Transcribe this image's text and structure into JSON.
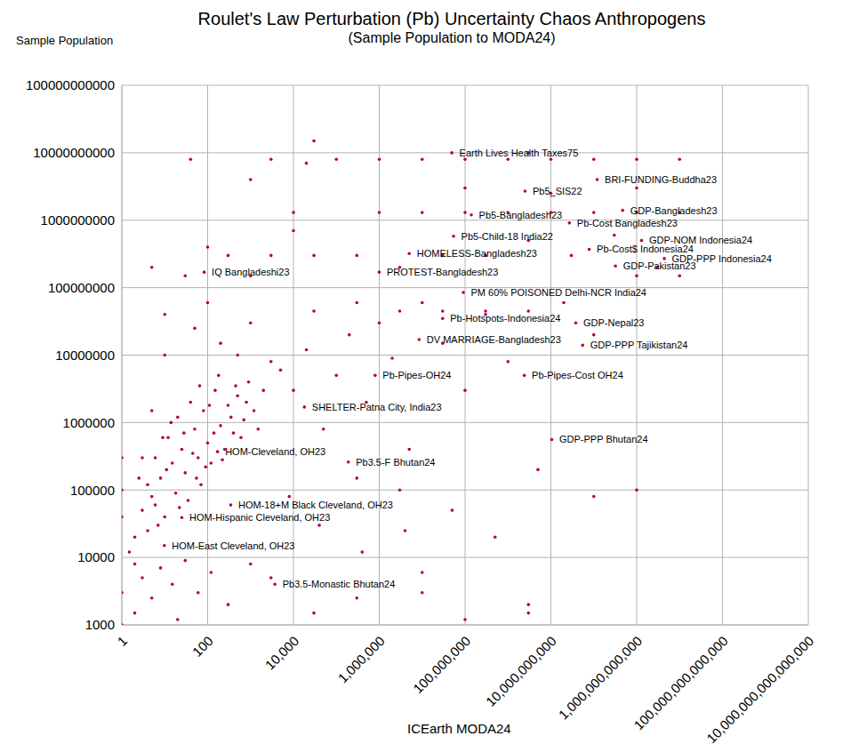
{
  "chart_data": {
    "type": "scatter",
    "title": "Roulet's Law Perturbation (Pb) Uncertainty Chaos Anthropogens",
    "subtitle": "(Sample Population to MODA24)",
    "x_label": "ICEarth MODA24",
    "y_label": "Sample Population",
    "log": true,
    "grid": true,
    "color": "#b5003f",
    "marker": "circle",
    "xlim": [
      1,
      10000000000000000
    ],
    "ylim": [
      1000,
      100000000000
    ],
    "xticks": [
      1,
      100,
      {
        "value": 10000,
        "label": "10,000"
      },
      {
        "value": 1000000,
        "label": "1,000,000"
      },
      {
        "value": 100000000,
        "label": "100,000,000"
      },
      {
        "value": 10000000000,
        "label": "10,000,000,000"
      },
      {
        "value": 1000000000000,
        "label": "1,000,000,000,000"
      },
      {
        "value": 100000000000000,
        "label": "100,000,000,000,000"
      },
      {
        "value": 10000000000000000,
        "label": "10,000,000,000,000,000"
      }
    ],
    "yticks": [
      1000,
      10000,
      100000,
      1000000,
      10000000,
      100000000,
      1000000000,
      10000000000,
      100000000000
    ],
    "points": [
      [
        2,
        20000
      ],
      [
        3,
        50000
      ],
      [
        4,
        120000
      ],
      [
        5,
        80000
      ],
      [
        6,
        300000
      ],
      [
        8,
        150000
      ],
      [
        10,
        40000
      ],
      [
        12,
        600000
      ],
      [
        15,
        250000
      ],
      [
        18,
        90000
      ],
      [
        20,
        1200000
      ],
      [
        25,
        400000
      ],
      [
        30,
        180000
      ],
      [
        35,
        70000
      ],
      [
        40,
        2000000
      ],
      [
        50,
        800000
      ],
      [
        60,
        300000
      ],
      [
        70,
        120000
      ],
      [
        80,
        1500000
      ],
      [
        100,
        500000
      ],
      [
        120,
        250000
      ],
      [
        150,
        3000000
      ],
      [
        200,
        900000
      ],
      [
        250,
        400000
      ],
      [
        300,
        1800000
      ],
      [
        400,
        700000
      ],
      [
        500,
        2500000
      ],
      [
        700,
        1100000
      ],
      [
        900,
        4000000
      ],
      [
        1200,
        1500000
      ],
      [
        2,
        8000
      ],
      [
        3,
        300000
      ],
      [
        5,
        1500000
      ],
      [
        7,
        30000
      ],
      [
        9,
        600000
      ],
      [
        1,
        100000
      ],
      [
        1,
        40000
      ],
      [
        1,
        300000
      ],
      [
        1.5,
        12000
      ],
      [
        2.5,
        150000
      ],
      [
        4,
        25000
      ],
      [
        6,
        60000
      ],
      [
        11,
        200000
      ],
      [
        14,
        1000000
      ],
      [
        22,
        55000
      ],
      [
        28,
        700000
      ],
      [
        45,
        350000
      ],
      [
        55,
        150000
      ],
      [
        65,
        3500000
      ],
      [
        90,
        220000
      ],
      [
        110,
        1800000
      ],
      [
        140,
        700000
      ],
      [
        180,
        5000000
      ],
      [
        220,
        280000
      ],
      [
        350,
        1200000
      ],
      [
        450,
        3500000
      ],
      [
        600,
        600000
      ],
      [
        800,
        2000000
      ],
      [
        1500,
        800000
      ],
      [
        2000,
        3000000
      ],
      [
        1,
        3000
      ],
      [
        2,
        1500
      ],
      [
        3,
        5000
      ],
      [
        5,
        2500
      ],
      [
        8,
        7000
      ],
      [
        15,
        4000
      ],
      [
        30,
        9000
      ],
      [
        60,
        3000
      ],
      [
        120,
        6000
      ],
      [
        300,
        2000
      ],
      [
        1000,
        8000
      ],
      [
        3000,
        5000
      ],
      [
        30000,
        1500
      ],
      [
        300000,
        2500
      ],
      [
        10000000,
        6000
      ],
      [
        100000000,
        1200
      ],
      [
        3000000000,
        1500
      ],
      [
        1,
        1000
      ],
      [
        20,
        1200
      ],
      [
        5000,
        6000000
      ],
      [
        10000,
        3000000
      ],
      [
        20000,
        12000000
      ],
      [
        50000,
        800000
      ],
      [
        100000,
        5000000
      ],
      [
        200000,
        20000000
      ],
      [
        500000,
        2000000
      ],
      [
        1000000,
        30000000
      ],
      [
        2000000,
        9000000
      ],
      [
        5000000,
        400000
      ],
      [
        10000000,
        60000000
      ],
      [
        30000000,
        15000000
      ],
      [
        100000000,
        3000000
      ],
      [
        300000000,
        40000000
      ],
      [
        1000000000,
        8000000
      ],
      [
        5000000000,
        200000
      ],
      [
        20000000000,
        60000000
      ],
      [
        100000000000,
        20000000
      ],
      [
        1000000000000,
        150000000
      ],
      [
        3000000,
        100000
      ],
      [
        300000,
        150000
      ],
      [
        50000000,
        50000
      ],
      [
        500000000,
        20000
      ],
      [
        8000,
        80000
      ],
      [
        40000,
        30000
      ],
      [
        400000,
        12000
      ],
      [
        4000000,
        25000
      ],
      [
        10,
        10000000
      ],
      [
        50,
        25000000
      ],
      [
        200,
        15000000
      ],
      [
        1000,
        30000000
      ],
      [
        3000,
        8000000
      ],
      [
        30000,
        45000000
      ],
      [
        300000,
        60000000
      ],
      [
        3000000,
        45000000
      ],
      [
        30000000,
        45000000
      ],
      [
        300000000,
        45000000
      ],
      [
        3000000000,
        45000000
      ],
      [
        10,
        40000000
      ],
      [
        100,
        60000000
      ],
      [
        500,
        10000000
      ],
      [
        5,
        200000000
      ],
      [
        30,
        150000000
      ],
      [
        300,
        300000000
      ],
      [
        3000,
        300000000
      ],
      [
        30000,
        300000000
      ],
      [
        300000,
        300000000
      ],
      [
        3000000,
        200000000
      ],
      [
        30000000,
        300000000
      ],
      [
        300000000,
        300000000
      ],
      [
        3000000000,
        500000000
      ],
      [
        30000000000,
        300000000
      ],
      [
        300000000000,
        600000000
      ],
      [
        3000000000000,
        200000000
      ],
      [
        10000000000000,
        150000000
      ],
      [
        100,
        400000000
      ],
      [
        1000,
        150000000
      ],
      [
        10000,
        700000000
      ],
      [
        1000000,
        1300000000
      ],
      [
        10000000,
        1300000000
      ],
      [
        100000000,
        1300000000
      ],
      [
        1000000000,
        1300000000
      ],
      [
        10000000000,
        1300000000
      ],
      [
        100000000000,
        1300000000
      ],
      [
        1000000000000,
        1300000000
      ],
      [
        10000000000000,
        1300000000
      ],
      [
        10000,
        1300000000
      ],
      [
        40,
        8000000000
      ],
      [
        3000,
        8000000000
      ],
      [
        100000,
        8000000000
      ],
      [
        1000000,
        8000000000
      ],
      [
        10000000,
        8000000000
      ],
      [
        100000000,
        8000000000
      ],
      [
        1000000000,
        8000000000
      ],
      [
        10000000000,
        8000000000
      ],
      [
        100000000000,
        8000000000
      ],
      [
        1000000000000,
        8000000000
      ],
      [
        10000000000000,
        8000000000
      ],
      [
        20000,
        7000000000
      ],
      [
        30000,
        15000000000
      ],
      [
        3000000000,
        10000000000
      ],
      [
        1000,
        4000000000
      ],
      [
        100000000,
        3000000000
      ],
      [
        10000000000,
        2500000000
      ],
      [
        1000000000000,
        3000000000
      ],
      [
        1000000000000,
        100000
      ],
      [
        3000000000,
        2000
      ],
      [
        10000000,
        3000
      ],
      [
        100000000000,
        80000
      ]
    ],
    "labeled_points": [
      {
        "label": "IQ Bangladeshi23",
        "x": 83,
        "y": 170000000
      },
      {
        "label": "Pb5-Bangladesh23",
        "x": 140000000,
        "y": 1200000000
      },
      {
        "label": "Pb-Cost Bangladesh23",
        "x": 27000000000,
        "y": 910000000
      },
      {
        "label": "GDP-Bangladesh23",
        "x": 470000000000,
        "y": 1400000000
      },
      {
        "label": "HOMELESS-Bangladesh23",
        "x": 5000000,
        "y": 320000000
      },
      {
        "label": "Earth Lives Health Taxes75",
        "x": 49000000,
        "y": 10000000000
      },
      {
        "label": "Pb5_SIS22",
        "x": 2500000000,
        "y": 2700000000
      },
      {
        "label": "BRI-FUNDING-Buddha23",
        "x": 120000000000,
        "y": 4000000000
      },
      {
        "label": "Pb5-Child-18 India22",
        "x": 54000000,
        "y": 580000000
      },
      {
        "label": "GDP-NOM Indonesia24",
        "x": 1300000000000,
        "y": 500000000
      },
      {
        "label": "Pb-Cost$ Indonesia24",
        "x": 78000000000,
        "y": 370000000
      },
      {
        "label": "GDP-PPP Indonesia24",
        "x": 4400000000000,
        "y": 270000000
      },
      {
        "label": "GDP-Pakistan23",
        "x": 320000000000,
        "y": 210000000
      },
      {
        "label": "PROTEST-Bangladesh23",
        "x": 1000000,
        "y": 170000000
      },
      {
        "label": "PM 60% POISONED Delhi-NCR India24",
        "x": 91000000,
        "y": 85000000
      },
      {
        "label": "Pb-Hotspots-Indonesia24",
        "x": 30000000,
        "y": 35000000
      },
      {
        "label": "GDP-Nepal23",
        "x": 38000000000,
        "y": 30000000
      },
      {
        "label": "DV MARRIAGE-Bangladesh23",
        "x": 8500000,
        "y": 17000000
      },
      {
        "label": "GDP-PPP Tajikistan24",
        "x": 55000000000,
        "y": 14000000
      },
      {
        "label": "Pb-Pipes-OH24",
        "x": 800000,
        "y": 5000000
      },
      {
        "label": "Pb-Pipes-Cost OH24",
        "x": 2400000000,
        "y": 5000000
      },
      {
        "label": "SHELTER-Patna City, India23",
        "x": 18000,
        "y": 1700000
      },
      {
        "label": "GDP-PPP Bhutan24",
        "x": 10500000000,
        "y": 560000
      },
      {
        "label": "Pb3.5-F Bhutan24",
        "x": 190000,
        "y": 260000
      },
      {
        "label": "HOM-Cleveland, OH23",
        "x": 170,
        "y": 370000
      },
      {
        "label": "HOM-18+M Black Cleveland, OH23",
        "x": 345,
        "y": 60000
      },
      {
        "label": "HOM-Hispanic Cleveland, OH23",
        "x": 25,
        "y": 39000
      },
      {
        "label": "HOM-East Cleveland, OH23",
        "x": 9.8,
        "y": 15000
      },
      {
        "label": "Pb3.5-Monastic Bhutan24",
        "x": 3700,
        "y": 4000
      }
    ]
  }
}
